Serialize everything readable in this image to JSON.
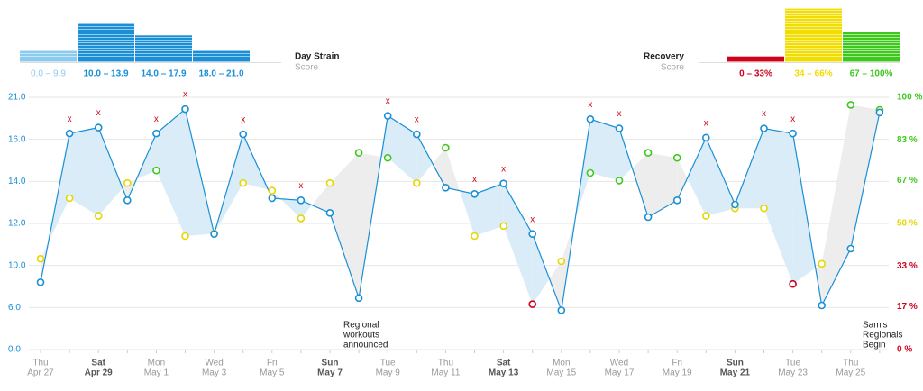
{
  "chart_data": [
    {
      "type": "bar",
      "title": "Day Strain",
      "subtitle": "Score",
      "bins": [
        "0.0 – 9.9",
        "10.0 – 13.9",
        "14.0 – 17.9",
        "18.0 – 21.0"
      ],
      "values": [
        4,
        13,
        9,
        4
      ],
      "colors": [
        "#8ccbf0",
        "#1a8fd6",
        "#1a8fd6",
        "#1a8fd6"
      ]
    },
    {
      "type": "bar",
      "title": "Recovery",
      "subtitle": "Score",
      "bins": [
        "0 – 33%",
        "34 – 66%",
        "67 – 100%"
      ],
      "values": [
        2,
        18,
        10
      ],
      "colors": [
        "#d0021b",
        "#f2dd00",
        "#3ec81e"
      ]
    },
    {
      "type": "line",
      "weekdays": [
        "Thu",
        null,
        "Sat",
        null,
        "Mon",
        null,
        "Wed",
        null,
        "Fri",
        null,
        "Sun",
        null,
        "Tue",
        null,
        "Thu",
        null,
        "Sat",
        null,
        "Mon",
        null,
        "Wed",
        null,
        "Fri",
        null,
        "Sun",
        null,
        "Tue",
        null,
        "Thu",
        null
      ],
      "categories": [
        "Apr 27",
        null,
        "Apr 29",
        null,
        "May 1",
        null,
        "May 3",
        null,
        "May 5",
        null,
        "May 7",
        null,
        "May 9",
        null,
        "May 11",
        null,
        "May 13",
        null,
        "May 15",
        null,
        "May 17",
        null,
        "May 19",
        null,
        "May 21",
        null,
        "May 23",
        null,
        "May 25",
        null
      ],
      "series": [
        {
          "color": "#1a8fd6",
          "fill": "#d9ecf8",
          "values": [
            8.4,
            16.7,
            17.4,
            13.1,
            16.7,
            19.6,
            11.5,
            16.6,
            13.2,
            13.1,
            12.5,
            6.9,
            18.8,
            16.6,
            13.7,
            13.4,
            13.9,
            11.5,
            5.6,
            18.4,
            17.3,
            12.3,
            13.1,
            16.2,
            12.9,
            17.3,
            16.7,
            6.2,
            10.8,
            19.2
          ]
        },
        {
          "axis": "y2",
          "fill": "#ededed",
          "color_stops": [
            {
              "from": 0,
              "color": "#d0021b"
            },
            {
              "from": 34,
              "color": "#e8d600"
            },
            {
              "from": 67,
              "color": "#3ec81e"
            }
          ],
          "values": [
            36,
            60,
            53,
            66,
            71,
            45,
            46,
            66,
            63,
            52,
            66,
            78,
            76,
            66,
            80,
            45,
            49,
            18,
            35,
            70,
            67,
            78,
            76,
            53,
            56,
            56,
            26,
            34,
            97,
            95
          ]
        }
      ],
      "flag_label": "x",
      "flagged": [
        1,
        2,
        4,
        5,
        7,
        9,
        12,
        13,
        15,
        16,
        17,
        19,
        20,
        23,
        25,
        26
      ],
      "ylim": [
        0,
        21
      ],
      "yticks": [
        {
          "value": 0,
          "label": "0.0"
        },
        {
          "value": 6,
          "label": "6.0"
        },
        {
          "value": 10,
          "label": "10.0"
        },
        {
          "value": 12,
          "label": "12.0"
        },
        {
          "value": 14,
          "label": "14.0"
        },
        {
          "value": 16,
          "label": "16.0"
        },
        {
          "value": 21,
          "label": "21.0"
        }
      ],
      "y2lim": [
        0,
        100
      ],
      "y2ticks": [
        {
          "value": 0,
          "label": "0 %"
        },
        {
          "value": 17,
          "label": "17 %"
        },
        {
          "value": 33,
          "label": "33 %"
        },
        {
          "value": 50,
          "label": "50 %"
        },
        {
          "value": 67,
          "label": "67 %"
        },
        {
          "value": 83,
          "label": "83 %"
        },
        {
          "value": 100,
          "label": "100 %"
        }
      ],
      "grid": true,
      "annotations": [
        {
          "lines": [
            "Regional",
            "workouts",
            "announced"
          ]
        },
        {
          "lines": [
            "Sam's",
            "Regionals",
            "Begin"
          ]
        }
      ]
    }
  ]
}
